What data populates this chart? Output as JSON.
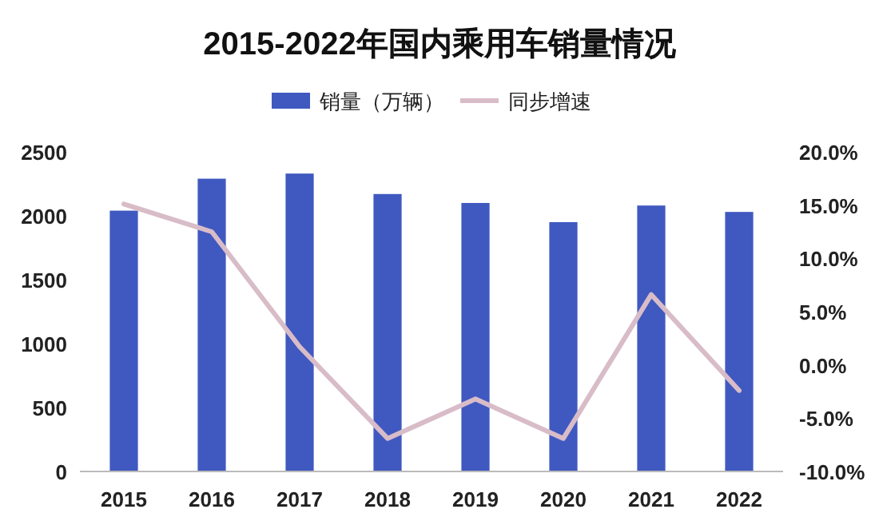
{
  "chart_data": {
    "type": "bar",
    "title": "2015-2022年国内乘用车销量情况",
    "categories": [
      "2015",
      "2016",
      "2017",
      "2018",
      "2019",
      "2020",
      "2021",
      "2022"
    ],
    "series": [
      {
        "name": "销量（万辆）",
        "color": "#4059c0",
        "values": [
          2040,
          2290,
          2330,
          2170,
          2100,
          1950,
          2080,
          2030
        ]
      },
      {
        "name": "同步增速",
        "type": "line",
        "axis": "y2",
        "color": "#d8bcc8",
        "values": [
          15.1,
          12.5,
          1.7,
          -6.9,
          -3.2,
          -6.9,
          6.6,
          -2.4
        ]
      }
    ],
    "ylim": [
      0,
      2500
    ],
    "yticks": [
      0,
      500,
      1000,
      1500,
      2000,
      2500
    ],
    "y2lim": [
      -10,
      20
    ],
    "y2ticks": [
      {
        "value": -10,
        "label": "-10.0%"
      },
      {
        "value": -5,
        "label": "-5.0%"
      },
      {
        "value": 0,
        "label": "0.0%"
      },
      {
        "value": 5,
        "label": "5.0%"
      },
      {
        "value": 10,
        "label": "10.0%"
      },
      {
        "value": 15,
        "label": "15.0%"
      },
      {
        "value": 20,
        "label": "20.0%"
      }
    ],
    "legend": "top",
    "grid": false
  }
}
